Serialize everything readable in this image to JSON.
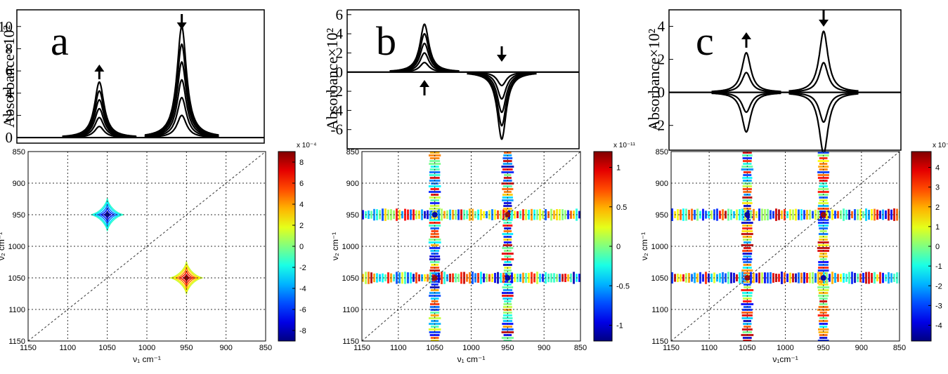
{
  "colors": {
    "trace": "#000000",
    "grid": "#333333",
    "colormap": [
      "#00008f",
      "#0000ff",
      "#00bfff",
      "#7fff7f",
      "#ffff00",
      "#ff7f00",
      "#ff0000",
      "#7f0000"
    ]
  },
  "chart_data": [
    {
      "panel": "a",
      "type": "line",
      "ylabel": "Absorbance×10²",
      "ylim": [
        -0.5,
        11.5
      ],
      "yticks": [
        "0",
        "2",
        "4",
        "6",
        "8",
        "10"
      ],
      "peaks": [
        {
          "center": 1050,
          "heights": [
            1.0,
            1.8,
            2.6,
            3.4,
            4.2,
            5.0
          ],
          "arrow": "up"
        },
        {
          "center": 950,
          "heights": [
            2.0,
            3.6,
            5.2,
            6.8,
            8.4,
            10.0
          ],
          "arrow": "down"
        }
      ]
    },
    {
      "panel": "b",
      "type": "line",
      "ylabel": "Absorbance×10²",
      "ylim": [
        -8,
        6.5
      ],
      "yticks": [
        "6",
        "4",
        "2",
        "0",
        "-2",
        "-4",
        "-6"
      ],
      "peaks": [
        {
          "center": 1050,
          "heights": [
            1.0,
            2.0,
            3.0,
            4.0,
            5.0
          ],
          "arrow": "up"
        },
        {
          "center": 950,
          "heights": [
            -1.4,
            -2.8,
            -4.2,
            -5.6,
            -7.0
          ],
          "arrow": "down"
        }
      ]
    },
    {
      "panel": "c",
      "type": "line",
      "ylabel": "Absorbance×10²",
      "ylim": [
        -3.5,
        5
      ],
      "yticks": [
        "4",
        "2",
        "0",
        "-2"
      ],
      "peaks": [
        {
          "center": 1050,
          "heights": [
            2.4,
            -2.4,
            1.2,
            -1.2
          ],
          "arrow": "up"
        },
        {
          "center": 950,
          "heights": [
            3.7,
            -3.7,
            1.8,
            -1.8
          ],
          "arrow": "down"
        }
      ]
    },
    {
      "panel": "a",
      "type": "heatmap",
      "xlabel": "ν₁ cm⁻¹",
      "ylabel": "ν₂ cm⁻¹",
      "xticks": [
        "1150",
        "1100",
        "1050",
        "1000",
        "950",
        "900",
        "850"
      ],
      "yticks": [
        "850",
        "900",
        "950",
        "1000",
        "1050",
        "1100",
        "1150"
      ],
      "colorbar": {
        "exponent": "x 10⁻⁴",
        "range": [
          -9,
          9
        ],
        "ticks": [
          "8",
          "6",
          "4",
          "2",
          "0",
          "-2",
          "-4",
          "-6",
          "-8"
        ]
      },
      "features": [
        {
          "nu1": 1050,
          "nu2": 950,
          "value": -9
        },
        {
          "nu1": 950,
          "nu2": 1050,
          "value": 9
        }
      ]
    },
    {
      "panel": "b",
      "type": "heatmap",
      "xlabel": "ν₁ cm⁻¹",
      "ylabel": "ν₂ cm⁻¹",
      "xticks": [
        "1150",
        "1100",
        "1050",
        "1000",
        "950",
        "900",
        "850"
      ],
      "yticks": [
        "850",
        "900",
        "950",
        "1000",
        "1050",
        "1100",
        "1150"
      ],
      "colorbar": {
        "exponent": "x 10⁻¹¹",
        "range": [
          -1.2,
          1.2
        ],
        "ticks": [
          "1",
          "0.5",
          "0",
          "-0.5",
          "-1"
        ]
      },
      "bands": [
        1050,
        950
      ]
    },
    {
      "panel": "c",
      "type": "heatmap",
      "xlabel": "ν₁cm⁻¹",
      "ylabel": "ν₂ cm⁻¹",
      "xticks": [
        "1150",
        "1100",
        "1050",
        "1000",
        "950",
        "900",
        "850"
      ],
      "yticks": [
        "850",
        "900",
        "950",
        "1000",
        "1050",
        "1100",
        "1150"
      ],
      "colorbar": {
        "exponent": "x 10⁻¹²",
        "range": [
          -4.8,
          4.8
        ],
        "ticks": [
          "4",
          "3",
          "2",
          "1",
          "0",
          "-1",
          "-2",
          "-3",
          "-4"
        ]
      },
      "bands": [
        1050,
        950
      ]
    }
  ]
}
